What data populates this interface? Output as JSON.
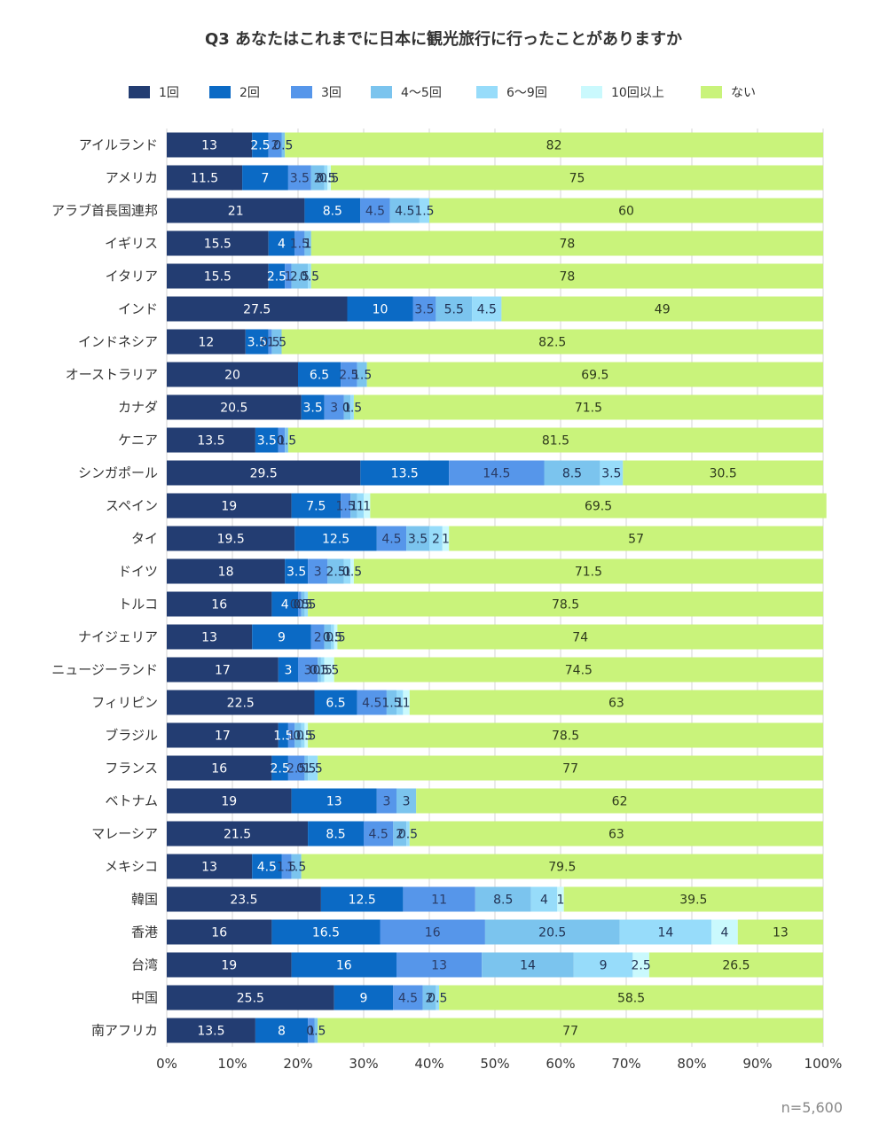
{
  "footnote": "n=5,600",
  "chart_data": {
    "type": "bar",
    "orientation": "horizontal",
    "stacked": true,
    "title": "Q3 あなたはこれまでに日本に観光旅行に行ったことがありますか",
    "xlim": [
      0,
      100
    ],
    "x_ticks": [
      "0%",
      "10%",
      "20%",
      "30%",
      "40%",
      "50%",
      "60%",
      "70%",
      "80%",
      "90%",
      "100%"
    ],
    "grid": "vertical",
    "legend_position": "top",
    "categories": [
      "アイルランド",
      "アメリカ",
      "アラブ首長国連邦",
      "イギリス",
      "イタリア",
      "インド",
      "インドネシア",
      "オーストラリア",
      "カナダ",
      "ケニア",
      "シンガポール",
      "スペイン",
      "タイ",
      "ドイツ",
      "トルコ",
      "ナイジェリア",
      "ニュージーランド",
      "フィリピン",
      "ブラジル",
      "フランス",
      "ベトナム",
      "マレーシア",
      "メキシコ",
      "韓国",
      "香港",
      "台湾",
      "中国",
      "南アフリカ"
    ],
    "series": [
      {
        "name": "1回",
        "color": "#233d72",
        "values": [
          13,
          11.5,
          21,
          15.5,
          15.5,
          27.5,
          12,
          20,
          20.5,
          13.5,
          29.5,
          19,
          19.5,
          18,
          16,
          13,
          17,
          22.5,
          17,
          16,
          19,
          21.5,
          13,
          23.5,
          16,
          19,
          25.5,
          13.5
        ]
      },
      {
        "name": "2回",
        "color": "#0b6ac5",
        "values": [
          2.5,
          7,
          8.5,
          4,
          2.5,
          10,
          3.5,
          6.5,
          3.5,
          3.5,
          13.5,
          7.5,
          12.5,
          3.5,
          4,
          9,
          3,
          6.5,
          1.5,
          2.5,
          13,
          8.5,
          4.5,
          12.5,
          16.5,
          16,
          9,
          8
        ]
      },
      {
        "name": "3回",
        "color": "#5696ea",
        "values": [
          2,
          3.5,
          4.5,
          1.5,
          1,
          3.5,
          0.5,
          2.5,
          3,
          1,
          14.5,
          1.5,
          4.5,
          3,
          0.5,
          2,
          3,
          4.5,
          1,
          2.5,
          3,
          4.5,
          1.5,
          11,
          16,
          13,
          4.5,
          1
        ]
      },
      {
        "name": "4〜5回",
        "color": "#7bc4ee",
        "values": [
          0.5,
          2,
          4.5,
          1,
          2.5,
          5.5,
          1.5,
          1.5,
          1,
          0.5,
          8.5,
          1,
          3.5,
          2.5,
          0.5,
          1,
          0.5,
          1.5,
          1,
          0.5,
          3,
          2,
          1.5,
          8.5,
          20.5,
          14,
          2,
          0.5
        ]
      },
      {
        "name": "6〜9回",
        "color": "#97dcfa",
        "values": [
          0,
          0.5,
          1.5,
          0,
          0.5,
          4.5,
          0,
          0,
          0.5,
          0,
          3.5,
          1,
          2,
          1,
          0.5,
          0.5,
          0.5,
          1,
          0.5,
          1.5,
          0,
          0.5,
          0,
          4,
          14,
          9,
          0.5,
          0
        ]
      },
      {
        "name": "10回以上",
        "color": "#caf9fd",
        "values": [
          0,
          0.5,
          0,
          0,
          0,
          0,
          0,
          0,
          0,
          0,
          0,
          1,
          1,
          0.5,
          0,
          0.5,
          1.5,
          1,
          0.5,
          0,
          0,
          0,
          0,
          1,
          4,
          2.5,
          0,
          0
        ]
      },
      {
        "name": "ない",
        "color": "#c9f37b",
        "values": [
          82,
          75,
          60,
          78,
          78,
          49,
          82.5,
          69.5,
          71.5,
          81.5,
          30.5,
          69.5,
          57,
          71.5,
          78.5,
          74,
          74.5,
          63,
          78.5,
          77,
          62,
          63,
          79.5,
          39.5,
          13,
          26.5,
          58.5,
          77
        ]
      }
    ]
  }
}
